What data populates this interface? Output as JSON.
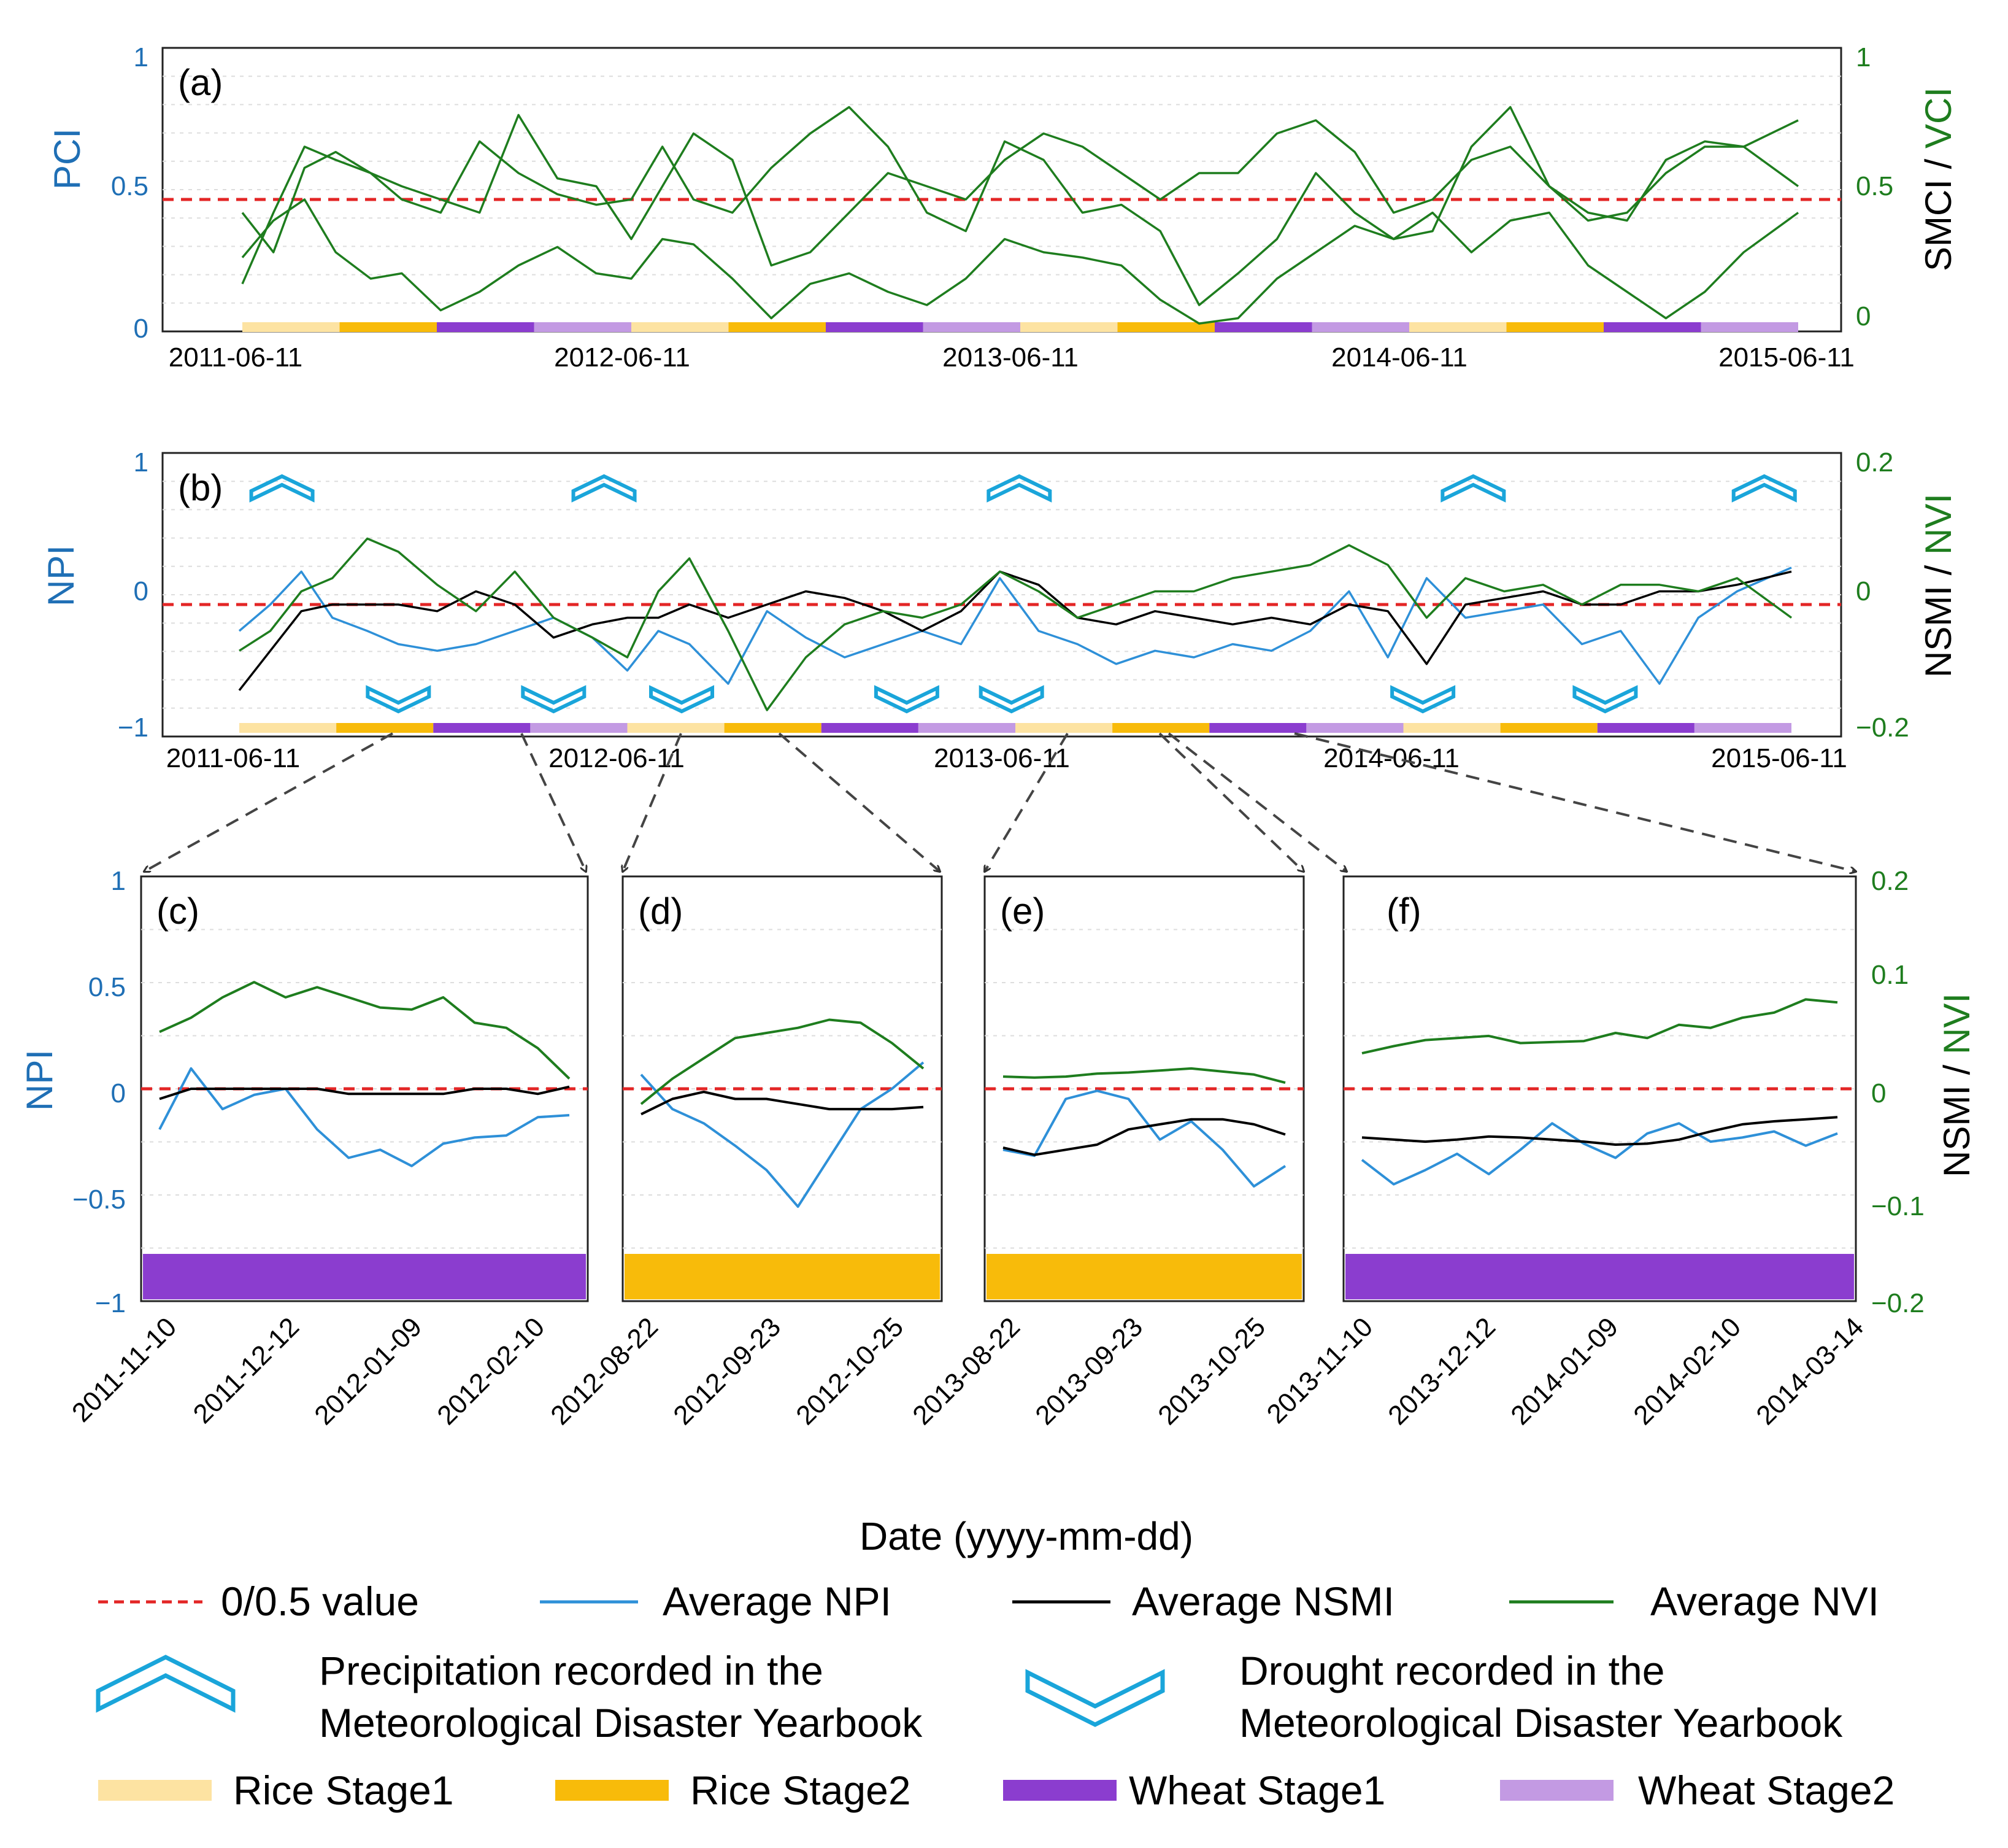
{
  "figure": {
    "xlabel_bottom": "Date (yyyy-mm-dd)",
    "colors": {
      "npi": "#2e90d8",
      "nsmi": "#000000",
      "nvi": "#1e7d1e",
      "threshold": "#e32626",
      "marker": "#1aa5da",
      "rice1": "#fde3a2",
      "rice2": "#f8bb0a",
      "wheat1": "#8b3dcf",
      "wheat2": "#c39ae3",
      "axis_left": "#1f6fb5",
      "axis_right": "#1e7d1e"
    }
  },
  "chart_data": [
    {
      "panel": "(a)",
      "type": "line",
      "ylabel_left": "PCI",
      "ylabel_right_a": "SMCI",
      "ylabel_right_sep": " / ",
      "ylabel_right_b": "VCI",
      "ylim_left": [
        0,
        1
      ],
      "ylim_right": [
        0,
        1
      ],
      "yticks_left": [
        "0",
        "0.5",
        "1"
      ],
      "yticks_right": [
        "0",
        "0.5",
        "1"
      ],
      "xticks": [
        "2011-06-11",
        "2012-06-11",
        "2013-06-11",
        "2014-06-11",
        "2015-06-11"
      ],
      "x_range_years": [
        2011.44,
        2015.44
      ],
      "threshold": 0.5,
      "series": [
        {
          "name": "PCI",
          "axis": "left",
          "x": [
            2011.44,
            2011.52,
            2011.6,
            2011.68,
            2011.77,
            2011.85,
            2011.95,
            2012.05,
            2012.15,
            2012.25,
            2012.35,
            2012.44,
            2012.52,
            2012.6,
            2012.7,
            2012.8,
            2012.9,
            2013.0,
            2013.1,
            2013.2,
            2013.3,
            2013.4,
            2013.5,
            2013.6,
            2013.7,
            2013.8,
            2013.9,
            2014.0,
            2014.1,
            2014.2,
            2014.3,
            2014.4,
            2014.5,
            2014.6,
            2014.7,
            2014.8,
            2014.9,
            2015.0,
            2015.1,
            2015.2,
            2015.3,
            2015.44
          ],
          "values": [
            0.28,
            0.42,
            0.5,
            0.3,
            0.2,
            0.22,
            0.08,
            0.15,
            0.25,
            0.32,
            0.22,
            0.2,
            0.35,
            0.33,
            0.2,
            0.05,
            0.18,
            0.22,
            0.15,
            0.1,
            0.2,
            0.35,
            0.3,
            0.28,
            0.25,
            0.12,
            0.03,
            0.05,
            0.2,
            0.3,
            0.4,
            0.35,
            0.45,
            0.3,
            0.42,
            0.45,
            0.25,
            0.15,
            0.05,
            0.15,
            0.3,
            0.45
          ]
        },
        {
          "name": "SMCI",
          "axis": "right",
          "x": [
            2011.44,
            2011.52,
            2011.6,
            2011.68,
            2011.77,
            2011.85,
            2011.95,
            2012.05,
            2012.15,
            2012.25,
            2012.35,
            2012.44,
            2012.52,
            2012.6,
            2012.7,
            2012.8,
            2012.9,
            2013.0,
            2013.1,
            2013.2,
            2013.3,
            2013.4,
            2013.5,
            2013.6,
            2013.7,
            2013.8,
            2013.9,
            2014.0,
            2014.1,
            2014.2,
            2014.3,
            2014.4,
            2014.5,
            2014.6,
            2014.7,
            2014.8,
            2014.9,
            2015.0,
            2015.1,
            2015.2,
            2015.3,
            2015.44
          ],
          "values": [
            0.18,
            0.45,
            0.7,
            0.65,
            0.6,
            0.5,
            0.45,
            0.72,
            0.6,
            0.52,
            0.48,
            0.5,
            0.7,
            0.5,
            0.45,
            0.62,
            0.75,
            0.85,
            0.7,
            0.45,
            0.38,
            0.72,
            0.65,
            0.45,
            0.48,
            0.38,
            0.1,
            0.22,
            0.35,
            0.6,
            0.45,
            0.35,
            0.38,
            0.7,
            0.85,
            0.55,
            0.42,
            0.45,
            0.6,
            0.7,
            0.7,
            0.8
          ]
        },
        {
          "name": "VCI",
          "axis": "right",
          "x": [
            2011.44,
            2011.52,
            2011.6,
            2011.68,
            2011.77,
            2011.85,
            2011.95,
            2012.05,
            2012.15,
            2012.25,
            2012.35,
            2012.44,
            2012.52,
            2012.6,
            2012.7,
            2012.8,
            2012.9,
            2013.0,
            2013.1,
            2013.2,
            2013.3,
            2013.4,
            2013.5,
            2013.6,
            2013.7,
            2013.8,
            2013.9,
            2014.0,
            2014.1,
            2014.2,
            2014.3,
            2014.4,
            2014.5,
            2014.6,
            2014.7,
            2014.8,
            2014.9,
            2015.0,
            2015.1,
            2015.2,
            2015.3,
            2015.44
          ],
          "values": [
            0.45,
            0.3,
            0.62,
            0.68,
            0.6,
            0.55,
            0.5,
            0.45,
            0.82,
            0.58,
            0.55,
            0.35,
            0.55,
            0.75,
            0.65,
            0.25,
            0.3,
            0.45,
            0.6,
            0.55,
            0.5,
            0.65,
            0.75,
            0.7,
            0.6,
            0.5,
            0.6,
            0.6,
            0.75,
            0.8,
            0.68,
            0.45,
            0.5,
            0.65,
            0.7,
            0.55,
            0.45,
            0.42,
            0.65,
            0.72,
            0.7,
            0.55
          ]
        }
      ]
    },
    {
      "panel": "(b)",
      "type": "line",
      "ylabel_left": "NPI",
      "ylabel_right_a": "NSMI",
      "ylabel_right_sep": " / ",
      "ylabel_right_b": "NVI",
      "ylim_left": [
        -1,
        1
      ],
      "ylim_right": [
        -0.2,
        0.2
      ],
      "yticks_left": [
        "−1",
        "0",
        "1"
      ],
      "yticks_right": [
        "−0.2",
        "0",
        "0.2"
      ],
      "xticks": [
        "2011-06-11",
        "2012-06-11",
        "2013-06-11",
        "2014-06-11",
        "2015-06-11"
      ],
      "x_range_years": [
        2011.44,
        2015.44
      ],
      "threshold": 0,
      "series": [
        {
          "name": "NPI",
          "axis": "left",
          "x": [
            2011.44,
            2011.52,
            2011.6,
            2011.68,
            2011.77,
            2011.85,
            2011.95,
            2012.05,
            2012.15,
            2012.25,
            2012.35,
            2012.44,
            2012.52,
            2012.6,
            2012.7,
            2012.8,
            2012.9,
            2013.0,
            2013.1,
            2013.2,
            2013.3,
            2013.4,
            2013.5,
            2013.6,
            2013.7,
            2013.8,
            2013.9,
            2014.0,
            2014.1,
            2014.2,
            2014.3,
            2014.4,
            2014.5,
            2014.6,
            2014.7,
            2014.8,
            2014.9,
            2015.0,
            2015.1,
            2015.2,
            2015.3,
            2015.44
          ],
          "values": [
            -0.2,
            0.0,
            0.25,
            -0.1,
            -0.2,
            -0.3,
            -0.35,
            -0.3,
            -0.2,
            -0.1,
            -0.25,
            -0.5,
            -0.2,
            -0.3,
            -0.6,
            -0.05,
            -0.25,
            -0.4,
            -0.3,
            -0.2,
            -0.3,
            0.2,
            -0.2,
            -0.3,
            -0.45,
            -0.35,
            -0.4,
            -0.3,
            -0.35,
            -0.2,
            0.1,
            -0.4,
            0.2,
            -0.1,
            -0.05,
            0.0,
            -0.3,
            -0.2,
            -0.6,
            -0.1,
            0.1,
            0.28
          ]
        },
        {
          "name": "NSMI",
          "axis": "right",
          "x": [
            2011.44,
            2011.52,
            2011.6,
            2011.68,
            2011.77,
            2011.85,
            2011.95,
            2012.05,
            2012.15,
            2012.25,
            2012.35,
            2012.44,
            2012.52,
            2012.6,
            2012.7,
            2012.8,
            2012.9,
            2013.0,
            2013.1,
            2013.2,
            2013.3,
            2013.4,
            2013.5,
            2013.6,
            2013.7,
            2013.8,
            2013.9,
            2014.0,
            2014.1,
            2014.2,
            2014.3,
            2014.4,
            2014.5,
            2014.6,
            2014.7,
            2014.8,
            2014.9,
            2015.0,
            2015.1,
            2015.2,
            2015.3,
            2015.44
          ],
          "values": [
            -0.13,
            -0.07,
            -0.01,
            0.0,
            0.0,
            0.0,
            -0.01,
            0.02,
            0.0,
            -0.05,
            -0.03,
            -0.02,
            -0.02,
            0.0,
            -0.02,
            0.0,
            0.02,
            0.01,
            -0.01,
            -0.04,
            -0.01,
            0.05,
            0.03,
            -0.02,
            -0.03,
            -0.01,
            -0.02,
            -0.03,
            -0.02,
            -0.03,
            0.0,
            -0.01,
            -0.09,
            0.0,
            0.01,
            0.02,
            0.0,
            0.0,
            0.02,
            0.02,
            0.03,
            0.05
          ]
        },
        {
          "name": "NVI",
          "axis": "right",
          "x": [
            2011.44,
            2011.52,
            2011.6,
            2011.68,
            2011.77,
            2011.85,
            2011.95,
            2012.05,
            2012.15,
            2012.25,
            2012.35,
            2012.44,
            2012.52,
            2012.6,
            2012.7,
            2012.8,
            2012.9,
            2013.0,
            2013.1,
            2013.2,
            2013.3,
            2013.4,
            2013.5,
            2013.6,
            2013.7,
            2013.8,
            2013.9,
            2014.0,
            2014.1,
            2014.2,
            2014.3,
            2014.4,
            2014.5,
            2014.6,
            2014.7,
            2014.8,
            2014.9,
            2015.0,
            2015.1,
            2015.2,
            2015.3,
            2015.44
          ],
          "values": [
            -0.07,
            -0.04,
            0.02,
            0.04,
            0.1,
            0.08,
            0.03,
            -0.01,
            0.05,
            -0.02,
            -0.05,
            -0.08,
            0.02,
            0.07,
            -0.04,
            -0.16,
            -0.08,
            -0.03,
            -0.01,
            -0.02,
            0.0,
            0.05,
            0.02,
            -0.02,
            0.0,
            0.02,
            0.02,
            0.04,
            0.05,
            0.06,
            0.09,
            0.06,
            -0.02,
            0.04,
            0.02,
            0.03,
            0.0,
            0.03,
            0.03,
            0.02,
            0.04,
            -0.02
          ]
        }
      ],
      "events": {
        "precipitation_years": [
          2011.55,
          2012.38,
          2013.45,
          2014.62,
          2015.37
        ],
        "drought_years": [
          2011.85,
          2012.25,
          2012.58,
          2013.16,
          2013.43,
          2014.49,
          2014.96
        ]
      }
    },
    {
      "panel": "(c)",
      "type": "line",
      "xticks": [
        "2011-11-10",
        "2011-12-12",
        "2012-01-09",
        "2012-02-10"
      ],
      "ylim_left": [
        -1,
        1
      ],
      "ylim_right": [
        -0.2,
        0.2
      ],
      "yticks_left": [
        "−1",
        "−0.5",
        "0",
        "0.5",
        "1"
      ],
      "bar_stage": "Wheat Stage1",
      "series": [
        {
          "name": "NPI",
          "axis": "left",
          "values": [
            -0.2,
            0.1,
            -0.1,
            -0.03,
            0.0,
            -0.2,
            -0.34,
            -0.3,
            -0.38,
            -0.27,
            -0.24,
            -0.23,
            -0.14,
            -0.13
          ]
        },
        {
          "name": "NSMI",
          "axis": "right",
          "values": [
            -0.01,
            0.0,
            0.0,
            0.0,
            0.0,
            0.0,
            -0.005,
            -0.005,
            -0.005,
            -0.005,
            0.0,
            0.0,
            -0.005,
            0.002
          ]
        },
        {
          "name": "NVI",
          "axis": "right",
          "values": [
            0.056,
            0.07,
            0.09,
            0.105,
            0.09,
            0.1,
            0.09,
            0.08,
            0.078,
            0.09,
            0.065,
            0.06,
            0.04,
            0.01
          ]
        }
      ]
    },
    {
      "panel": "(d)",
      "type": "line",
      "xticks": [
        "2012-08-22",
        "2012-09-23",
        "2012-10-25"
      ],
      "ylim_left": [
        -1,
        1
      ],
      "ylim_right": [
        -0.2,
        0.2
      ],
      "bar_stage": "Rice Stage2",
      "series": [
        {
          "name": "NPI",
          "axis": "left",
          "values": [
            0.07,
            -0.1,
            -0.17,
            -0.28,
            -0.4,
            -0.58,
            -0.34,
            -0.1,
            0.0,
            0.13
          ]
        },
        {
          "name": "NSMI",
          "axis": "right",
          "values": [
            -0.025,
            -0.01,
            -0.003,
            -0.01,
            -0.01,
            -0.015,
            -0.02,
            -0.02,
            -0.02,
            -0.018
          ]
        },
        {
          "name": "NVI",
          "axis": "right",
          "values": [
            -0.015,
            0.01,
            0.03,
            0.05,
            0.055,
            0.06,
            0.068,
            0.065,
            0.045,
            0.02
          ]
        }
      ]
    },
    {
      "panel": "(e)",
      "type": "line",
      "xticks": [
        "2013-08-22",
        "2013-09-23",
        "2013-10-25"
      ],
      "ylim_left": [
        -1,
        1
      ],
      "ylim_right": [
        -0.2,
        0.2
      ],
      "bar_stage": "Rice Stage2",
      "series": [
        {
          "name": "NPI",
          "axis": "left",
          "values": [
            -0.3,
            -0.33,
            -0.05,
            -0.01,
            -0.05,
            -0.25,
            -0.16,
            -0.3,
            -0.48,
            -0.38
          ]
        },
        {
          "name": "NSMI",
          "axis": "right",
          "values": [
            -0.058,
            -0.065,
            -0.06,
            -0.055,
            -0.04,
            -0.035,
            -0.03,
            -0.03,
            -0.035,
            -0.045
          ]
        },
        {
          "name": "NVI",
          "axis": "right",
          "values": [
            0.012,
            0.011,
            0.012,
            0.015,
            0.016,
            0.018,
            0.02,
            0.017,
            0.014,
            0.006
          ]
        }
      ]
    },
    {
      "panel": "(f)",
      "type": "line",
      "xticks": [
        "2013-11-10",
        "2013-12-12",
        "2014-01-09",
        "2014-02-10",
        "2014-03-14"
      ],
      "ylim_left": [
        -1,
        1
      ],
      "ylim_right": [
        -0.2,
        0.2
      ],
      "yticks_right": [
        "−0.2",
        "−0.1",
        "0",
        "0.1",
        "0.2"
      ],
      "ylabel_right_a": "NSMI",
      "ylabel_right_sep": " / ",
      "ylabel_right_b": "NVI",
      "ylabel_left": "NPI",
      "bar_stage": "Wheat Stage1",
      "series": [
        {
          "name": "NPI",
          "axis": "left",
          "values": [
            -0.35,
            -0.47,
            -0.4,
            -0.32,
            -0.42,
            -0.3,
            -0.17,
            -0.27,
            -0.34,
            -0.22,
            -0.17,
            -0.26,
            -0.24,
            -0.21,
            -0.28,
            -0.22
          ]
        },
        {
          "name": "NSMI",
          "axis": "right",
          "values": [
            -0.048,
            -0.05,
            -0.052,
            -0.05,
            -0.047,
            -0.048,
            -0.05,
            -0.052,
            -0.055,
            -0.054,
            -0.05,
            -0.042,
            -0.035,
            -0.032,
            -0.03,
            -0.028
          ]
        },
        {
          "name": "NVI",
          "axis": "right",
          "values": [
            0.035,
            0.042,
            0.048,
            0.05,
            0.052,
            0.045,
            0.046,
            0.047,
            0.055,
            0.05,
            0.063,
            0.06,
            0.07,
            0.075,
            0.088,
            0.085
          ]
        }
      ]
    }
  ],
  "legend": {
    "line_threshold": "0/0.5 value",
    "line_npi": "Average NPI",
    "line_nsmi": "Average NSMI",
    "line_nvi": "Average NVI",
    "precip_line1": "Precipitation recorded in the",
    "precip_line2": "Meteorological  Disaster Yearbook",
    "drought_line1": "Drought recorded in the",
    "drought_line2": "Meteorological  Disaster Yearbook",
    "rice1": "Rice Stage1",
    "rice2": "Rice Stage2",
    "wheat1": "Wheat Stage1",
    "wheat2": "Wheat Stage2"
  },
  "stage_sequence": [
    "Rice Stage1",
    "Rice Stage2",
    "Wheat Stage1",
    "Wheat Stage2",
    "Rice Stage1",
    "Rice Stage2",
    "Wheat Stage1",
    "Wheat Stage2",
    "Rice Stage1",
    "Rice Stage2",
    "Wheat Stage1",
    "Wheat Stage2",
    "Rice Stage1",
    "Rice Stage2",
    "Wheat Stage1",
    "Wheat Stage2"
  ]
}
